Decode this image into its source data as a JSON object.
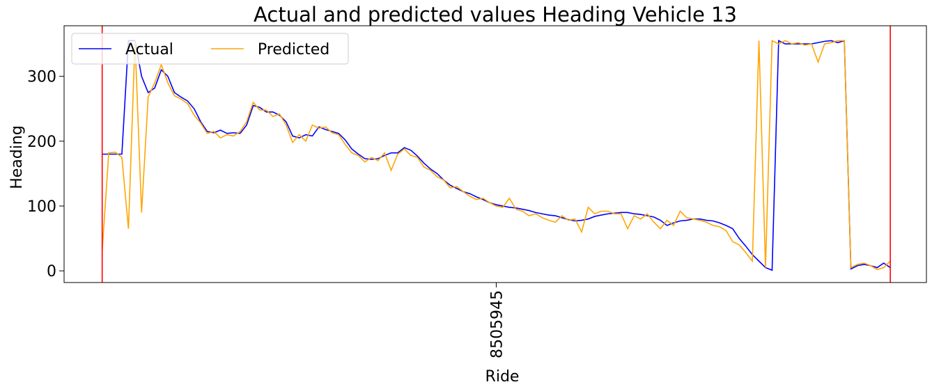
{
  "chart_data": {
    "type": "line",
    "title": "Actual and predicted values Heading Vehicle 13",
    "xlabel": "Ride",
    "ylabel": "Heading",
    "xlim": [
      -5.8,
      125.5
    ],
    "xticks": [
      {
        "value": 60,
        "label": "8505945"
      }
    ],
    "ylim": [
      -18,
      378
    ],
    "yticks": [
      0,
      100,
      200,
      300
    ],
    "vlines": [
      0,
      120
    ],
    "vline_color": "red",
    "legend": "upper left",
    "series": [
      {
        "name": "Actual",
        "color": "blue",
        "values": [
          180,
          180,
          180,
          180,
          355,
          355,
          300,
          275,
          282,
          310,
          300,
          275,
          268,
          262,
          250,
          230,
          215,
          213,
          217,
          212,
          213,
          212,
          225,
          255,
          252,
          245,
          245,
          240,
          230,
          208,
          205,
          210,
          208,
          222,
          218,
          215,
          212,
          202,
          188,
          180,
          173,
          172,
          173,
          178,
          182,
          182,
          190,
          186,
          177,
          166,
          157,
          150,
          140,
          132,
          127,
          122,
          119,
          114,
          110,
          105,
          102,
          100,
          98,
          97,
          95,
          93,
          90,
          88,
          86,
          85,
          82,
          79,
          77,
          78,
          80,
          84,
          86,
          88,
          89,
          90,
          90,
          88,
          87,
          85,
          83,
          78,
          70,
          74,
          77,
          78,
          80,
          80,
          78,
          77,
          74,
          70,
          65,
          50,
          38,
          25,
          15,
          5,
          1,
          355,
          350,
          350,
          350,
          350,
          350,
          352,
          354,
          355,
          352,
          355,
          3,
          8,
          10,
          8,
          5,
          12,
          5
        ]
      },
      {
        "name": "Predicted",
        "color": "orange",
        "values": [
          30,
          182,
          183,
          175,
          65,
          355,
          90,
          268,
          290,
          318,
          290,
          270,
          265,
          258,
          240,
          228,
          212,
          215,
          205,
          210,
          208,
          215,
          230,
          260,
          248,
          248,
          238,
          242,
          225,
          198,
          210,
          200,
          225,
          220,
          222,
          213,
          210,
          195,
          182,
          178,
          168,
          175,
          170,
          182,
          155,
          180,
          188,
          178,
          175,
          160,
          155,
          145,
          140,
          128,
          130,
          122,
          115,
          110,
          112,
          105,
          100,
          98,
          112,
          95,
          92,
          85,
          88,
          82,
          78,
          75,
          85,
          78,
          80,
          60,
          98,
          88,
          92,
          92,
          88,
          88,
          65,
          85,
          80,
          88,
          75,
          65,
          78,
          70,
          92,
          82,
          80,
          78,
          75,
          70,
          68,
          62,
          45,
          40,
          28,
          15,
          355,
          5,
          355,
          350,
          355,
          350,
          352,
          348,
          350,
          322,
          350,
          352,
          355,
          355,
          5,
          10,
          12,
          8,
          2,
          5,
          15
        ]
      }
    ]
  }
}
